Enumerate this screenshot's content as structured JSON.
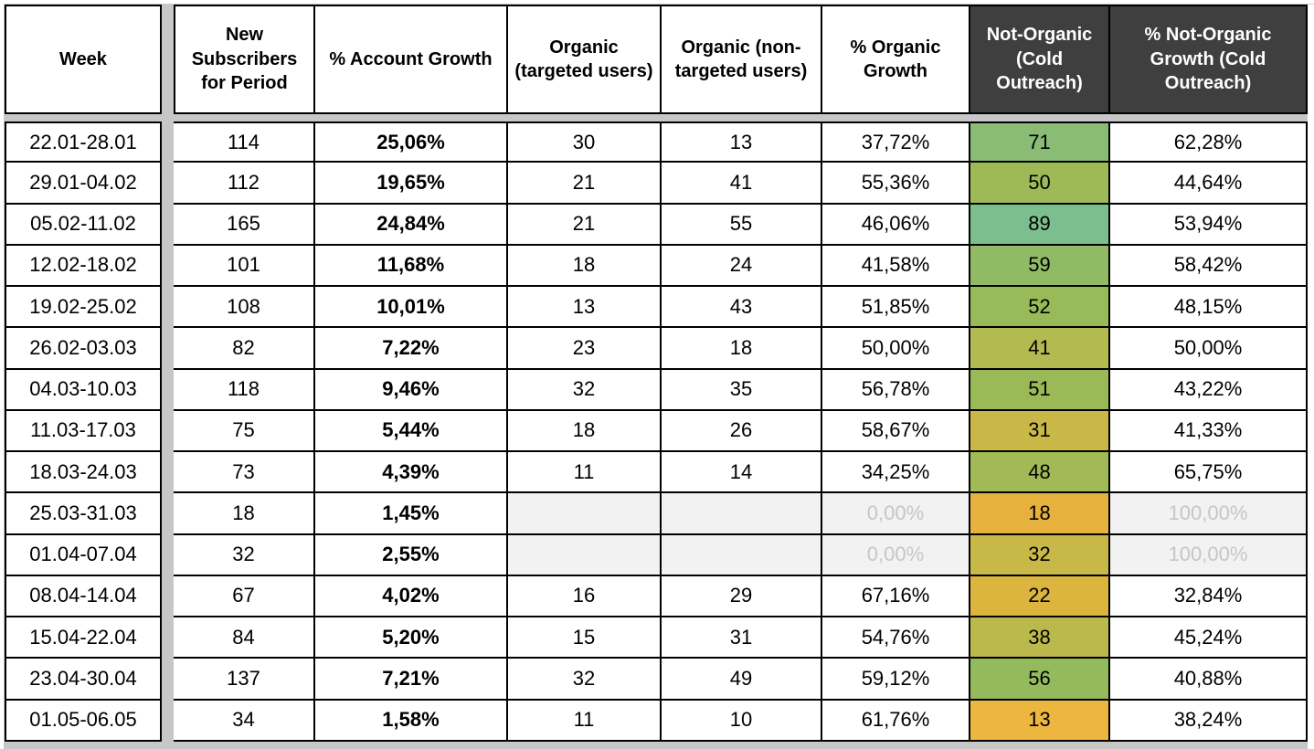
{
  "columns": [
    {
      "id": "week",
      "label": "Week",
      "style": "light"
    },
    {
      "id": "new_subscribers",
      "label": "New Subscribers for Period",
      "style": "light"
    },
    {
      "id": "account_growth",
      "label": "% Account Growth",
      "style": "light"
    },
    {
      "id": "organic_targeted",
      "label": "Organic (targeted users)",
      "style": "light"
    },
    {
      "id": "organic_non_targeted",
      "label": "Organic (non-targeted users)",
      "style": "light"
    },
    {
      "id": "organic_growth",
      "label": "% Organic Growth",
      "style": "light"
    },
    {
      "id": "not_organic",
      "label": "Not-Organic (Cold Outreach)",
      "style": "dark"
    },
    {
      "id": "not_organic_growth",
      "label": "% Not-Organic Growth (Cold Outreach)",
      "style": "dark"
    }
  ],
  "rows": [
    {
      "week": "22.01-28.01",
      "new_subscribers": "114",
      "account_growth": "25,06%",
      "organic_targeted": "30",
      "organic_non_targeted": "13",
      "organic_growth": "37,72%",
      "not_organic": "71",
      "not_organic_color": "#8ABC75",
      "not_organic_growth": "62,28%",
      "muted": false
    },
    {
      "week": "29.01-04.02",
      "new_subscribers": "112",
      "account_growth": "19,65%",
      "organic_targeted": "21",
      "organic_non_targeted": "41",
      "organic_growth": "55,36%",
      "not_organic": "50",
      "not_organic_color": "#9DBA56",
      "not_organic_growth": "44,64%",
      "muted": false
    },
    {
      "week": "05.02-11.02",
      "new_subscribers": "165",
      "account_growth": "24,84%",
      "organic_targeted": "21",
      "organic_non_targeted": "55",
      "organic_growth": "46,06%",
      "not_organic": "89",
      "not_organic_color": "#7CBE8E",
      "not_organic_growth": "53,94%",
      "muted": false
    },
    {
      "week": "12.02-18.02",
      "new_subscribers": "101",
      "account_growth": "11,68%",
      "organic_targeted": "18",
      "organic_non_targeted": "24",
      "organic_growth": "41,58%",
      "not_organic": "59",
      "not_organic_color": "#90BB64",
      "not_organic_growth": "58,42%",
      "muted": false
    },
    {
      "week": "19.02-25.02",
      "new_subscribers": "108",
      "account_growth": "10,01%",
      "organic_targeted": "13",
      "organic_non_targeted": "43",
      "organic_growth": "51,85%",
      "not_organic": "52",
      "not_organic_color": "#98BA58",
      "not_organic_growth": "48,15%",
      "muted": false
    },
    {
      "week": "26.02-03.03",
      "new_subscribers": "82",
      "account_growth": "7,22%",
      "organic_targeted": "23",
      "organic_non_targeted": "18",
      "organic_growth": "50,00%",
      "not_organic": "41",
      "not_organic_color": "#B3BA50",
      "not_organic_growth": "50,00%",
      "muted": false
    },
    {
      "week": "04.03-10.03",
      "new_subscribers": "118",
      "account_growth": "9,46%",
      "organic_targeted": "32",
      "organic_non_targeted": "35",
      "organic_growth": "56,78%",
      "not_organic": "51",
      "not_organic_color": "#9ABA57",
      "not_organic_growth": "43,22%",
      "muted": false
    },
    {
      "week": "11.03-17.03",
      "new_subscribers": "75",
      "account_growth": "5,44%",
      "organic_targeted": "18",
      "organic_non_targeted": "26",
      "organic_growth": "58,67%",
      "not_organic": "31",
      "not_organic_color": "#C9B847",
      "not_organic_growth": "41,33%",
      "muted": false
    },
    {
      "week": "18.03-24.03",
      "new_subscribers": "73",
      "account_growth": "4,39%",
      "organic_targeted": "11",
      "organic_non_targeted": "14",
      "organic_growth": "34,25%",
      "not_organic": "48",
      "not_organic_color": "#A2BA55",
      "not_organic_growth": "65,75%",
      "muted": false
    },
    {
      "week": "25.03-31.03",
      "new_subscribers": "18",
      "account_growth": "1,45%",
      "organic_targeted": "",
      "organic_non_targeted": "",
      "organic_growth": "0,00%",
      "not_organic": "18",
      "not_organic_color": "#E6B13D",
      "not_organic_growth": "100,00%",
      "muted": true
    },
    {
      "week": "01.04-07.04",
      "new_subscribers": "32",
      "account_growth": "2,55%",
      "organic_targeted": "",
      "organic_non_targeted": "",
      "organic_growth": "0,00%",
      "not_organic": "32",
      "not_organic_color": "#C7B847",
      "not_organic_growth": "100,00%",
      "muted": true
    },
    {
      "week": "08.04-14.04",
      "new_subscribers": "67",
      "account_growth": "4,02%",
      "organic_targeted": "16",
      "organic_non_targeted": "29",
      "organic_growth": "67,16%",
      "not_organic": "22",
      "not_organic_color": "#DCB53F",
      "not_organic_growth": "32,84%",
      "muted": false
    },
    {
      "week": "15.04-22.04",
      "new_subscribers": "84",
      "account_growth": "5,20%",
      "organic_targeted": "15",
      "organic_non_targeted": "31",
      "organic_growth": "54,76%",
      "not_organic": "38",
      "not_organic_color": "#BCB94C",
      "not_organic_growth": "45,24%",
      "muted": false
    },
    {
      "week": "23.04-30.04",
      "new_subscribers": "137",
      "account_growth": "7,21%",
      "organic_targeted": "32",
      "organic_non_targeted": "49",
      "organic_growth": "59,12%",
      "not_organic": "56",
      "not_organic_color": "#93BB5E",
      "not_organic_growth": "40,88%",
      "muted": false
    },
    {
      "week": "01.05-06.05",
      "new_subscribers": "34",
      "account_growth": "1,58%",
      "organic_targeted": "11",
      "organic_non_targeted": "10",
      "organic_growth": "61,76%",
      "not_organic": "13",
      "not_organic_color": "#ECB63F",
      "not_organic_growth": "38,24%",
      "muted": false
    }
  ],
  "colors": {
    "header_dark_bg": "#3F3F3F",
    "header_dark_text": "#FFFFFF",
    "grid_border": "#000000",
    "pane_divider": "#C7C7C7",
    "muted_cell_bg": "#F2F2F2",
    "muted_cell_text": "#C6C6C6"
  }
}
